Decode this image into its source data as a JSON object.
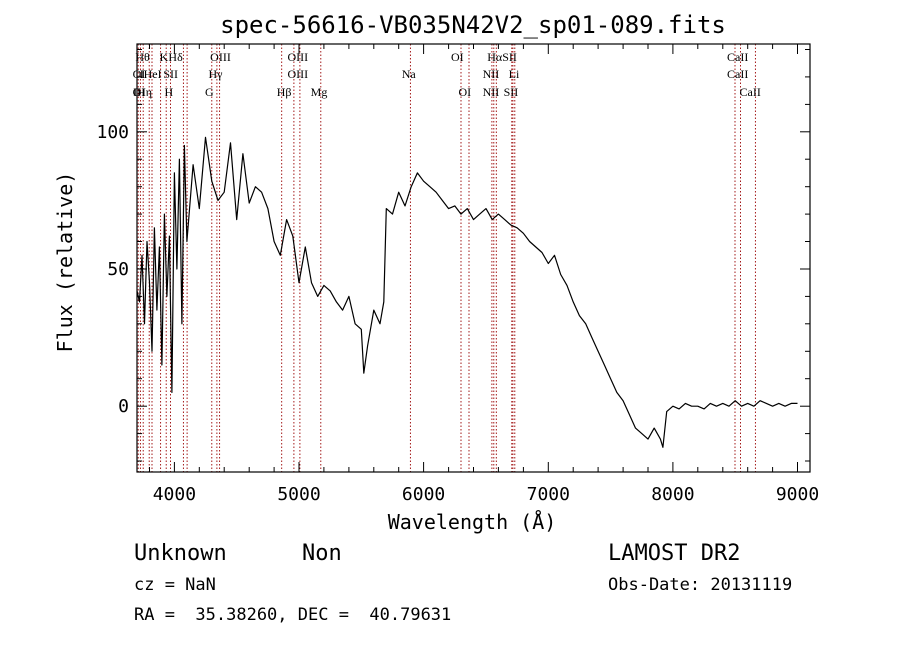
{
  "chart_data": {
    "type": "line",
    "title": "spec-56616-VB035N42V2_sp01-089.fits",
    "xlabel": "Wavelength (Å)",
    "ylabel": "Flux (relative)",
    "xlim": [
      3700,
      9100
    ],
    "ylim": [
      -24,
      132
    ],
    "xticks": [
      {
        "value": 4000,
        "label": "4000"
      },
      {
        "value": 5000,
        "label": "5000"
      },
      {
        "value": 6000,
        "label": "6000"
      },
      {
        "value": 7000,
        "label": "7000"
      },
      {
        "value": 8000,
        "label": "8000"
      },
      {
        "value": 9000,
        "label": "9000"
      }
    ],
    "yticks": [
      {
        "value": 0,
        "label": "0"
      },
      {
        "value": 50,
        "label": "50"
      },
      {
        "value": 100,
        "label": "100"
      }
    ],
    "line_color": "#000000",
    "marker_color": "#990000",
    "series": [
      {
        "x": [
          3700,
          3720,
          3740,
          3760,
          3780,
          3800,
          3820,
          3840,
          3860,
          3880,
          3900,
          3920,
          3940,
          3960,
          3980,
          4000,
          4020,
          4040,
          4060,
          4080,
          4100,
          4150,
          4200,
          4250,
          4300,
          4350,
          4400,
          4450,
          4500,
          4550,
          4600,
          4650,
          4700,
          4750,
          4800,
          4850,
          4900,
          4950,
          5000,
          5050,
          5100,
          5150,
          5200,
          5250,
          5300,
          5350,
          5400,
          5450,
          5500,
          5520,
          5550,
          5600,
          5650,
          5680,
          5700,
          5750,
          5800,
          5850,
          5900,
          5950,
          6000,
          6050,
          6100,
          6150,
          6200,
          6250,
          6300,
          6350,
          6400,
          6450,
          6500,
          6550,
          6600,
          6650,
          6700,
          6750,
          6800,
          6850,
          6900,
          6950,
          7000,
          7050,
          7100,
          7150,
          7200,
          7250,
          7300,
          7350,
          7400,
          7450,
          7500,
          7550,
          7600,
          7650,
          7700,
          7750,
          7800,
          7850,
          7900,
          7920,
          7950,
          8000,
          8050,
          8100,
          8150,
          8200,
          8250,
          8300,
          8350,
          8400,
          8450,
          8500,
          8550,
          8600,
          8650,
          8700,
          8750,
          8800,
          8850,
          8900,
          8950,
          9000
        ],
        "y": [
          42,
          38,
          55,
          30,
          60,
          45,
          20,
          65,
          35,
          58,
          15,
          70,
          40,
          62,
          5,
          85,
          50,
          90,
          30,
          95,
          60,
          88,
          72,
          98,
          82,
          75,
          78,
          96,
          68,
          92,
          74,
          80,
          78,
          72,
          60,
          55,
          68,
          62,
          45,
          58,
          45,
          40,
          44,
          42,
          38,
          35,
          40,
          30,
          28,
          12,
          22,
          35,
          30,
          38,
          72,
          70,
          78,
          73,
          80,
          85,
          82,
          80,
          78,
          75,
          72,
          73,
          70,
          72,
          68,
          70,
          72,
          68,
          70,
          68,
          66,
          65,
          63,
          60,
          58,
          56,
          52,
          55,
          48,
          44,
          38,
          33,
          30,
          25,
          20,
          15,
          10,
          5,
          2,
          -3,
          -8,
          -10,
          -12,
          -8,
          -12,
          -15,
          -2,
          0,
          -1,
          1,
          0,
          0,
          -1,
          1,
          0,
          1,
          0,
          2,
          0,
          1,
          0,
          2,
          1,
          0,
          1,
          0,
          1,
          1
        ]
      }
    ],
    "lines": [
      {
        "x": 3710,
        "label": "Hθ"
      },
      {
        "x": 3727,
        "label": "OII"
      },
      {
        "x": 3750,
        "label": "OIII"
      },
      {
        "x": 3798,
        "label": "He"
      },
      {
        "x": 3820,
        "label": "Hη"
      },
      {
        "x": 3889,
        "label": "HeI"
      },
      {
        "x": 3934,
        "label": "K"
      },
      {
        "x": 3969,
        "label": "H"
      },
      {
        "x": 4072,
        "label": "SII"
      },
      {
        "x": 4102,
        "label": "Hδ"
      },
      {
        "x": 4300,
        "label": "G"
      },
      {
        "x": 4341,
        "label": "Hγ"
      },
      {
        "x": 4363,
        "label": "OIII"
      },
      {
        "x": 4861,
        "label": "Hβ"
      },
      {
        "x": 4959,
        "label": "OIII"
      },
      {
        "x": 5007,
        "label": "OIII"
      },
      {
        "x": 5175,
        "label": "Mg"
      },
      {
        "x": 5894,
        "label": "Na"
      },
      {
        "x": 6300,
        "label": "OI"
      },
      {
        "x": 6364,
        "label": "OI"
      },
      {
        "x": 6548,
        "label": "NII"
      },
      {
        "x": 6563,
        "label": "Hα"
      },
      {
        "x": 6583,
        "label": "NII"
      },
      {
        "x": 6707,
        "label": "Li"
      },
      {
        "x": 6716,
        "label": "SII"
      },
      {
        "x": 6731,
        "label": "SII"
      },
      {
        "x": 8498,
        "label": "CaII"
      },
      {
        "x": 8542,
        "label": "CaII"
      },
      {
        "x": 8662,
        "label": "CaII"
      }
    ],
    "line_labels": [
      {
        "text": "Hθ",
        "x": 3745,
        "row": 0
      },
      {
        "text": "K",
        "x": 3915,
        "row": 0
      },
      {
        "text": "Hδ",
        "x": 4010,
        "row": 0
      },
      {
        "text": "OIII",
        "x": 4370,
        "row": 0
      },
      {
        "text": "OIII",
        "x": 4990,
        "row": 0
      },
      {
        "text": "OI",
        "x": 6270,
        "row": 0
      },
      {
        "text": "Hα",
        "x": 6570,
        "row": 0
      },
      {
        "text": "SII",
        "x": 6690,
        "row": 0
      },
      {
        "text": "CaII",
        "x": 8520,
        "row": 0
      },
      {
        "text": "OI",
        "x": 3715,
        "row": 1
      },
      {
        "text": "I",
        "x": 3738,
        "row": 1
      },
      {
        "text": "HeI",
        "x": 3825,
        "row": 1
      },
      {
        "text": "SII",
        "x": 3970,
        "row": 1
      },
      {
        "text": "Hγ",
        "x": 4330,
        "row": 1
      },
      {
        "text": "OIII",
        "x": 4990,
        "row": 1
      },
      {
        "text": "Na",
        "x": 5880,
        "row": 1
      },
      {
        "text": "NII",
        "x": 6540,
        "row": 1
      },
      {
        "text": "Li",
        "x": 6725,
        "row": 1
      },
      {
        "text": "CaII",
        "x": 8520,
        "row": 1
      },
      {
        "text": "OI",
        "x": 3715,
        "row": 2
      },
      {
        "text": "IHη",
        "x": 3745,
        "row": 2
      },
      {
        "text": "H",
        "x": 3955,
        "row": 2
      },
      {
        "text": "G",
        "x": 4280,
        "row": 2
      },
      {
        "text": "Hβ",
        "x": 4880,
        "row": 2
      },
      {
        "text": "Mg",
        "x": 5160,
        "row": 2
      },
      {
        "text": "OI",
        "x": 6330,
        "row": 2
      },
      {
        "text": "NII",
        "x": 6540,
        "row": 2
      },
      {
        "text": "SII",
        "x": 6700,
        "row": 2
      },
      {
        "text": "CaII",
        "x": 8620,
        "row": 2
      }
    ],
    "grid": false,
    "legend": "none"
  },
  "info": {
    "object_class": "Unknown",
    "subclass": "Non",
    "survey": "LAMOST DR2",
    "redshift": "cz = NaN",
    "obs_date": "Obs-Date: 20131119",
    "coords": "RA =  35.38260, DEC =  40.79631"
  }
}
